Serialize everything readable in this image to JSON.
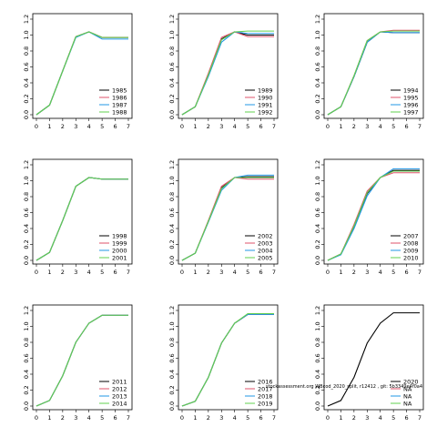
{
  "watermark": "stockassessment.org WBcod_2020_split, r12412 , git: 5b3349e4f0a4",
  "chart_data": {
    "type": "line",
    "xlim": [
      0,
      7
    ],
    "ylim": [
      0,
      1.2
    ],
    "x_ticks": [
      "0",
      "1",
      "2",
      "3",
      "4",
      "5",
      "6",
      "7"
    ],
    "y_ticks": [
      "0.0",
      "0.2",
      "0.4",
      "0.6",
      "0.8",
      "1.0",
      "1.2"
    ],
    "grid": false,
    "legend_placement": "bottom-right",
    "series_colors": [
      "#000000",
      "#DF536B",
      "#2297E6",
      "#61D04F"
    ],
    "series_colors_note_free": true,
    "x": [
      0,
      1,
      2,
      3,
      4,
      5,
      6,
      7
    ],
    "panels": [
      {
        "legend": [
          "1985",
          "1986",
          "1987",
          "1988"
        ],
        "series": [
          [
            0,
            0.12,
            0.55,
            0.98,
            1.04,
            0.97,
            0.97,
            0.97
          ],
          [
            0,
            0.12,
            0.55,
            0.98,
            1.04,
            0.97,
            0.97,
            0.97
          ],
          [
            0,
            0.12,
            0.55,
            0.97,
            1.04,
            0.95,
            0.95,
            0.95
          ],
          [
            0,
            0.12,
            0.55,
            0.98,
            1.04,
            0.97,
            0.97,
            0.97
          ]
        ]
      },
      {
        "legend": [
          "1989",
          "1990",
          "1991",
          "1992"
        ],
        "series": [
          [
            0,
            0.1,
            0.5,
            0.95,
            1.04,
            1.0,
            1.0,
            1.0
          ],
          [
            0,
            0.1,
            0.52,
            0.97,
            1.04,
            0.98,
            0.98,
            0.98
          ],
          [
            0,
            0.1,
            0.48,
            0.91,
            1.04,
            1.02,
            1.02,
            1.02
          ],
          [
            0,
            0.1,
            0.5,
            0.94,
            1.04,
            1.05,
            1.05,
            1.05
          ]
        ]
      },
      {
        "legend": [
          "1994",
          "1995",
          "1996",
          "1997"
        ],
        "series": [
          [
            0,
            0.1,
            0.48,
            0.91,
            1.04,
            1.03,
            1.03,
            1.03
          ],
          [
            0,
            0.1,
            0.49,
            0.93,
            1.04,
            1.06,
            1.06,
            1.06
          ],
          [
            0,
            0.1,
            0.48,
            0.91,
            1.04,
            1.03,
            1.03,
            1.03
          ],
          [
            0,
            0.1,
            0.49,
            0.93,
            1.04,
            1.05,
            1.05,
            1.05
          ]
        ]
      },
      {
        "legend": [
          "1998",
          "1999",
          "2000",
          "2001"
        ],
        "series": [
          [
            0,
            0.1,
            0.5,
            0.93,
            1.04,
            1.02,
            1.02,
            1.02
          ],
          [
            0,
            0.1,
            0.5,
            0.93,
            1.04,
            1.02,
            1.02,
            1.02
          ],
          [
            0,
            0.1,
            0.5,
            0.93,
            1.04,
            1.02,
            1.02,
            1.02
          ],
          [
            0,
            0.1,
            0.5,
            0.93,
            1.04,
            1.02,
            1.02,
            1.02
          ]
        ]
      },
      {
        "legend": [
          "2002",
          "2003",
          "2004",
          "2005"
        ],
        "series": [
          [
            0,
            0.09,
            0.49,
            0.91,
            1.04,
            1.05,
            1.05,
            1.05
          ],
          [
            0,
            0.09,
            0.5,
            0.93,
            1.04,
            1.02,
            1.02,
            1.02
          ],
          [
            0,
            0.09,
            0.48,
            0.88,
            1.04,
            1.07,
            1.07,
            1.07
          ],
          [
            0,
            0.09,
            0.49,
            0.9,
            1.04,
            1.04,
            1.04,
            1.04
          ]
        ]
      },
      {
        "legend": [
          "2007",
          "2008",
          "2009",
          "2010"
        ],
        "series": [
          [
            0,
            0.08,
            0.42,
            0.84,
            1.04,
            1.13,
            1.13,
            1.13
          ],
          [
            0,
            0.08,
            0.45,
            0.87,
            1.04,
            1.1,
            1.1,
            1.1
          ],
          [
            0,
            0.07,
            0.4,
            0.81,
            1.04,
            1.15,
            1.15,
            1.15
          ],
          [
            0,
            0.08,
            0.43,
            0.85,
            1.04,
            1.12,
            1.12,
            1.12
          ]
        ]
      },
      {
        "legend": [
          "2011",
          "2012",
          "2013",
          "2014"
        ],
        "series": [
          [
            0,
            0.07,
            0.38,
            0.8,
            1.04,
            1.14,
            1.14,
            1.14
          ],
          [
            0,
            0.07,
            0.38,
            0.8,
            1.04,
            1.14,
            1.14,
            1.14
          ],
          [
            0,
            0.07,
            0.38,
            0.8,
            1.04,
            1.14,
            1.14,
            1.14
          ],
          [
            0,
            0.07,
            0.38,
            0.8,
            1.04,
            1.14,
            1.14,
            1.14
          ]
        ]
      },
      {
        "legend": [
          "2016",
          "2017",
          "2018",
          "2019"
        ],
        "series": [
          [
            0,
            0.06,
            0.36,
            0.79,
            1.04,
            1.15,
            1.15,
            1.15
          ],
          [
            0,
            0.06,
            0.36,
            0.79,
            1.04,
            1.15,
            1.15,
            1.15
          ],
          [
            0,
            0.06,
            0.36,
            0.79,
            1.04,
            1.15,
            1.15,
            1.15
          ],
          [
            0,
            0.06,
            0.36,
            0.79,
            1.04,
            1.16,
            1.16,
            1.16
          ]
        ]
      },
      {
        "legend": [
          "2020",
          "NA",
          "NA",
          "NA"
        ],
        "series": [
          [
            0,
            0.07,
            0.36,
            0.79,
            1.04,
            1.17,
            1.17,
            1.17
          ],
          null,
          null,
          null
        ]
      }
    ]
  }
}
